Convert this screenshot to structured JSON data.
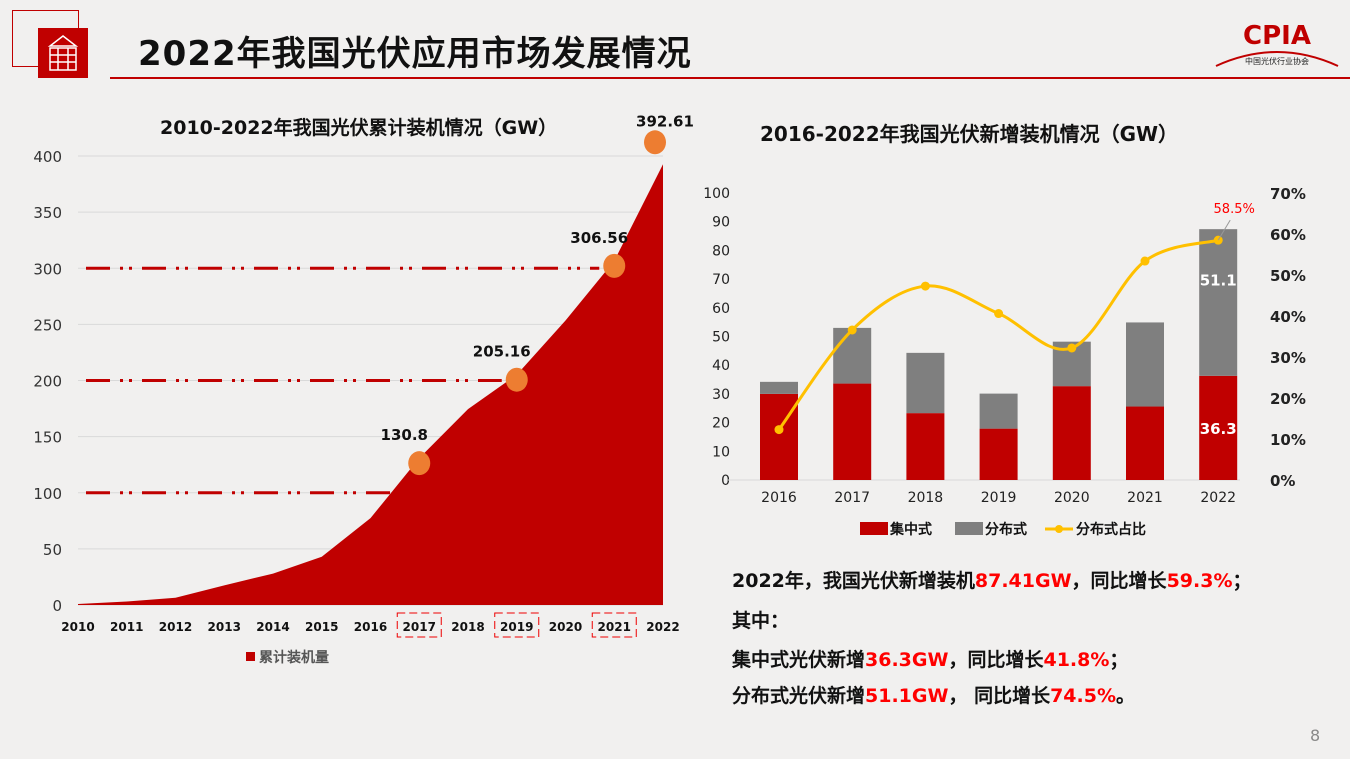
{
  "page": {
    "title": "2022年我国光伏应用市场发展情况",
    "page_number": "8",
    "logo": {
      "text": "CPIA",
      "subtitle": "中国光伏行业协会",
      "color": "#c00000"
    }
  },
  "summary": {
    "line1": {
      "a": "2022年，我国光伏新增装机",
      "v1": "87.41GW",
      "b": "，同比增长",
      "v2": "59.3%",
      "c": "；"
    },
    "line2": "其中：",
    "line3": {
      "a": "集中式光伏新增",
      "v1": "36.3GW",
      "b": "，同比增长",
      "v2": "41.8%",
      "c": "；"
    },
    "line4": {
      "a": "分布式光伏新增",
      "v1": "51.1GW",
      "b": "， 同比增长",
      "v2": "74.5%",
      "c": "。"
    }
  },
  "chart_data": [
    {
      "type": "area",
      "title": "2010-2022年我国光伏累计装机情况（GW）",
      "categories": [
        "2010",
        "2011",
        "2012",
        "2013",
        "2014",
        "2015",
        "2016",
        "2017",
        "2018",
        "2019",
        "2020",
        "2021",
        "2022"
      ],
      "series": [
        {
          "name": "累计装机量",
          "values": [
            0.86,
            3.1,
            6.5,
            17.5,
            28,
            43,
            77.4,
            130.8,
            174.5,
            205.16,
            253.4,
            306.56,
            392.61
          ],
          "color": "#c00000"
        }
      ],
      "data_labels": [
        {
          "x": "2017",
          "label": "130.8"
        },
        {
          "x": "2019",
          "label": "205.16"
        },
        {
          "x": "2021",
          "label": "306.56"
        },
        {
          "x": "2022",
          "label": "392.61"
        }
      ],
      "highlighted_categories": [
        "2017",
        "2019",
        "2021"
      ],
      "reference_lines": [
        100,
        200,
        300
      ],
      "yticks": [
        "0",
        "50",
        "100",
        "150",
        "200",
        "250",
        "300",
        "350",
        "400"
      ],
      "ylim": [
        0,
        400
      ],
      "grid": true,
      "legend": "bottom"
    },
    {
      "type": "bar+line",
      "title": "2016-2022年我国光伏新增装机情况（GW）",
      "categories": [
        "2016",
        "2017",
        "2018",
        "2019",
        "2020",
        "2021",
        "2022"
      ],
      "series": [
        {
          "name": "集中式",
          "type": "stacked-bar",
          "values": [
            30.0,
            33.6,
            23.3,
            17.9,
            32.7,
            25.6,
            36.3
          ],
          "color": "#c00000"
        },
        {
          "name": "分布式",
          "type": "stacked-bar",
          "values": [
            4.2,
            19.4,
            21.0,
            12.2,
            15.5,
            29.3,
            51.1
          ],
          "color": "#7f7f7f"
        },
        {
          "name": "分布式占比",
          "type": "line",
          "axis": "right",
          "values": [
            12.3,
            36.6,
            47.3,
            40.6,
            32.2,
            53.4,
            58.5
          ],
          "color": "#ffc000"
        }
      ],
      "data_labels": [
        {
          "series": "集中式",
          "x": "2022",
          "label": "36.3"
        },
        {
          "series": "分布式",
          "x": "2022",
          "label": "51.1"
        },
        {
          "series": "分布式占比",
          "x": "2022",
          "label": "58.5%"
        }
      ],
      "yticks": [
        "0",
        "10",
        "20",
        "30",
        "40",
        "50",
        "60",
        "70",
        "80",
        "90",
        "100"
      ],
      "y2ticks": [
        "0%",
        "10%",
        "20%",
        "30%",
        "40%",
        "50%",
        "60%",
        "70%"
      ],
      "ylim": [
        0,
        100
      ],
      "y2lim": [
        0,
        70
      ],
      "grid": false,
      "legend": "bottom"
    }
  ]
}
